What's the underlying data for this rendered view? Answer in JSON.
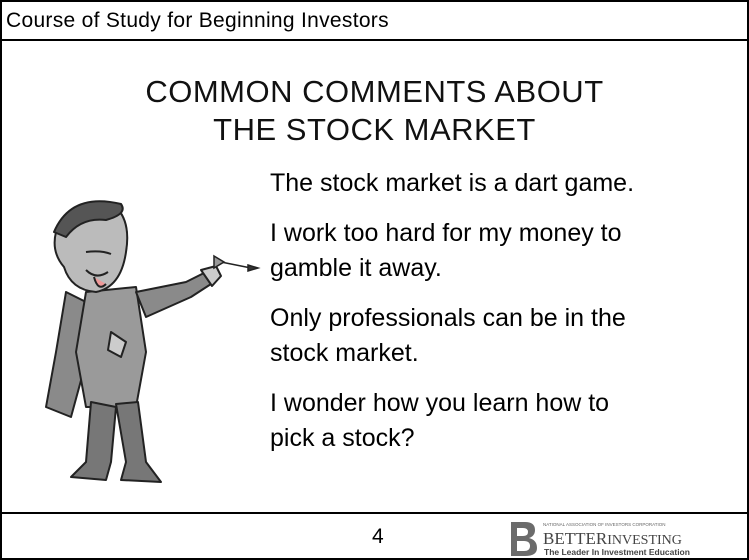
{
  "header": {
    "title": "Course of Study for Beginning Investors"
  },
  "slide": {
    "title": [
      "COMMON COMMENTS ABOUT",
      "THE STOCK MARKET"
    ],
    "comments": [
      [
        "The stock market is a dart game."
      ],
      [
        "I work too hard for my money to",
        "gamble it away."
      ],
      [
        "Only professionals can be in the",
        "stock market."
      ],
      [
        "I wonder how you learn how to",
        "pick a stock?"
      ]
    ]
  },
  "footer": {
    "page": "4",
    "logo": {
      "org": "NATIONAL ASSOCIATION OF INVESTORS CORPORATION",
      "name_bold": "BETTER",
      "name_rest": "INVESTING",
      "tagline": "The Leader In Investment Education"
    }
  }
}
